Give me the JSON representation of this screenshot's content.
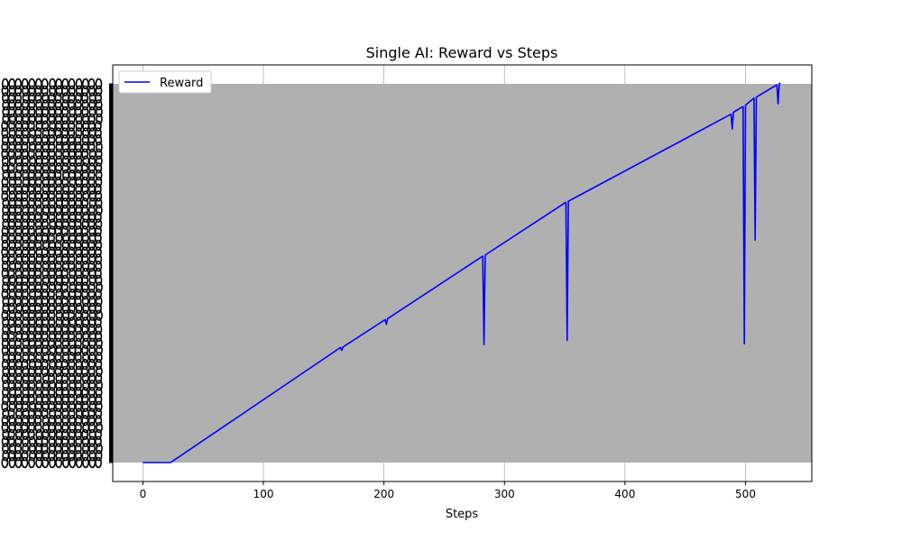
{
  "chart_data": {
    "type": "line",
    "title": "Single AI: Reward vs Steps",
    "xlabel": "Steps",
    "ylabel": "",
    "xlim": [
      -25,
      555
    ],
    "ylim": [
      -0.4,
      8.4
    ],
    "x_ticks": [
      0,
      100,
      200,
      300,
      400,
      500
    ],
    "x_tick_labels": [
      "0",
      "100",
      "200",
      "300",
      "400",
      "500"
    ],
    "grid": true,
    "legend": {
      "position": "top-left",
      "entries": [
        "Reward"
      ]
    },
    "y_axis_note": "y tick labels are illegible (heavily overlapping text)",
    "colors": {
      "line": "#0000ff",
      "grey_band": "#b0b0b0",
      "grid": "#b0b0b0"
    },
    "grey_band": {
      "x": [
        -25,
        555
      ],
      "y": [
        0,
        8
      ]
    },
    "series": [
      {
        "name": "Reward",
        "points": [
          [
            0,
            0
          ],
          [
            23,
            0
          ],
          [
            164,
            2.43
          ],
          [
            165,
            2.37
          ],
          [
            166,
            2.44
          ],
          [
            201,
            3.02
          ],
          [
            202,
            2.92
          ],
          [
            203,
            3.04
          ],
          [
            282,
            4.36
          ],
          [
            283,
            2.49
          ],
          [
            284,
            4.37
          ],
          [
            285,
            4.4
          ],
          [
            351,
            5.5
          ],
          [
            352,
            2.58
          ],
          [
            353,
            5.52
          ],
          [
            488,
            7.36
          ],
          [
            489,
            7.05
          ],
          [
            490,
            7.4
          ],
          [
            498,
            7.52
          ],
          [
            499,
            2.51
          ],
          [
            500,
            7.55
          ],
          [
            507,
            7.7
          ],
          [
            508,
            4.7
          ],
          [
            509,
            7.72
          ],
          [
            526,
            7.98
          ],
          [
            527,
            7.58
          ],
          [
            528,
            8.0
          ],
          [
            529,
            8.02
          ]
        ]
      }
    ]
  }
}
